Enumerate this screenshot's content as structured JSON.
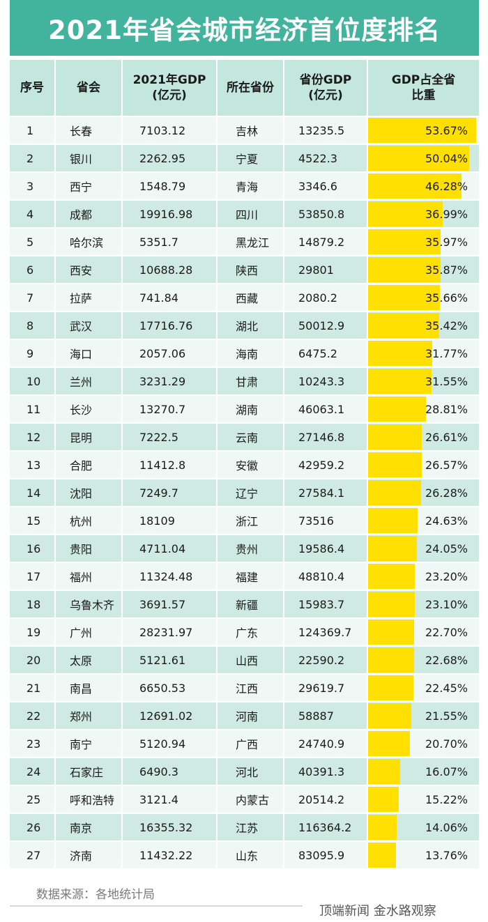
{
  "title": "2021年省会城市经济首位度排名",
  "headers": {
    "rank": "序号",
    "city": "省会",
    "city_gdp": "2021年GDP\n(亿元)",
    "province": "所在省份",
    "province_gdp": "省份GDP\n(亿元)",
    "share": "GDP占全省\n比重"
  },
  "rows": [
    {
      "rank": "1",
      "city": "长春",
      "gdp": "7103.12",
      "province": "吉林",
      "province_gdp": "13235.5",
      "share": "53.67%",
      "share_value": 53.67
    },
    {
      "rank": "2",
      "city": "银川",
      "gdp": "2262.95",
      "province": "宁夏",
      "province_gdp": "4522.3",
      "share": "50.04%",
      "share_value": 50.04
    },
    {
      "rank": "3",
      "city": "西宁",
      "gdp": "1548.79",
      "province": "青海",
      "province_gdp": "3346.6",
      "share": "46.28%",
      "share_value": 46.28
    },
    {
      "rank": "4",
      "city": "成都",
      "gdp": "19916.98",
      "province": "四川",
      "province_gdp": "53850.8",
      "share": "36.99%",
      "share_value": 36.99
    },
    {
      "rank": "5",
      "city": "哈尔滨",
      "gdp": "5351.7",
      "province": "黑龙江",
      "province_gdp": "14879.2",
      "share": "35.97%",
      "share_value": 35.97
    },
    {
      "rank": "6",
      "city": "西安",
      "gdp": "10688.28",
      "province": "陕西",
      "province_gdp": "29801",
      "share": "35.87%",
      "share_value": 35.87
    },
    {
      "rank": "7",
      "city": "拉萨",
      "gdp": "741.84",
      "province": "西藏",
      "province_gdp": "2080.2",
      "share": "35.66%",
      "share_value": 35.66
    },
    {
      "rank": "8",
      "city": "武汉",
      "gdp": "17716.76",
      "province": "湖北",
      "province_gdp": "50012.9",
      "share": "35.42%",
      "share_value": 35.42
    },
    {
      "rank": "9",
      "city": "海口",
      "gdp": "2057.06",
      "province": "海南",
      "province_gdp": "6475.2",
      "share": "31.77%",
      "share_value": 31.77
    },
    {
      "rank": "10",
      "city": "兰州",
      "gdp": "3231.29",
      "province": "甘肃",
      "province_gdp": "10243.3",
      "share": "31.55%",
      "share_value": 31.55
    },
    {
      "rank": "11",
      "city": "长沙",
      "gdp": "13270.7",
      "province": "湖南",
      "province_gdp": "46063.1",
      "share": "28.81%",
      "share_value": 28.81
    },
    {
      "rank": "12",
      "city": "昆明",
      "gdp": "7222.5",
      "province": "云南",
      "province_gdp": "27146.8",
      "share": "26.61%",
      "share_value": 26.61
    },
    {
      "rank": "13",
      "city": "合肥",
      "gdp": "11412.8",
      "province": "安徽",
      "province_gdp": "42959.2",
      "share": "26.57%",
      "share_value": 26.57
    },
    {
      "rank": "14",
      "city": "沈阳",
      "gdp": "7249.7",
      "province": "辽宁",
      "province_gdp": "27584.1",
      "share": "26.28%",
      "share_value": 26.28
    },
    {
      "rank": "15",
      "city": "杭州",
      "gdp": "18109",
      "province": "浙江",
      "province_gdp": "73516",
      "share": "24.63%",
      "share_value": 24.63
    },
    {
      "rank": "16",
      "city": "贵阳",
      "gdp": "4711.04",
      "province": "贵州",
      "province_gdp": "19586.4",
      "share": "24.05%",
      "share_value": 24.05
    },
    {
      "rank": "17",
      "city": "福州",
      "gdp": "11324.48",
      "province": "福建",
      "province_gdp": "48810.4",
      "share": "23.20%",
      "share_value": 23.2
    },
    {
      "rank": "18",
      "city": "乌鲁木齐",
      "gdp": "3691.57",
      "province": "新疆",
      "province_gdp": "15983.7",
      "share": "23.10%",
      "share_value": 23.1
    },
    {
      "rank": "19",
      "city": "广州",
      "gdp": "28231.97",
      "province": "广东",
      "province_gdp": "124369.7",
      "share": "22.70%",
      "share_value": 22.7
    },
    {
      "rank": "20",
      "city": "太原",
      "gdp": "5121.61",
      "province": "山西",
      "province_gdp": "22590.2",
      "share": "22.68%",
      "share_value": 22.68
    },
    {
      "rank": "21",
      "city": "南昌",
      "gdp": "6650.53",
      "province": "江西",
      "province_gdp": "29619.7",
      "share": "22.45%",
      "share_value": 22.45
    },
    {
      "rank": "22",
      "city": "郑州",
      "gdp": "12691.02",
      "province": "河南",
      "province_gdp": "58887",
      "share": "21.55%",
      "share_value": 21.55
    },
    {
      "rank": "23",
      "city": "南宁",
      "gdp": "5120.94",
      "province": "广西",
      "province_gdp": "24740.9",
      "share": "20.70%",
      "share_value": 20.7
    },
    {
      "rank": "24",
      "city": "石家庄",
      "gdp": "6490.3",
      "province": "河北",
      "province_gdp": "40391.3",
      "share": "16.07%",
      "share_value": 16.07
    },
    {
      "rank": "25",
      "city": "呼和浩特",
      "gdp": "3121.4",
      "province": "内蒙古",
      "province_gdp": "20514.2",
      "share": "15.22%",
      "share_value": 15.22
    },
    {
      "rank": "26",
      "city": "南京",
      "gdp": "16355.32",
      "province": "江苏",
      "province_gdp": "116364.2",
      "share": "14.06%",
      "share_value": 14.06
    },
    {
      "rank": "27",
      "city": "济南",
      "gdp": "11432.22",
      "province": "山东",
      "province_gdp": "83095.9",
      "share": "13.76%",
      "share_value": 13.76
    }
  ],
  "footer": {
    "source": "数据来源：各地统计局",
    "credit": "顶端新闻  金水路观察"
  },
  "colors": {
    "title_bg": "#42b39c",
    "header_bg": "#c3e7dd",
    "row_light": "#f0f8f5",
    "row_dark": "#cfeae3",
    "bar": "#ffe000"
  }
}
